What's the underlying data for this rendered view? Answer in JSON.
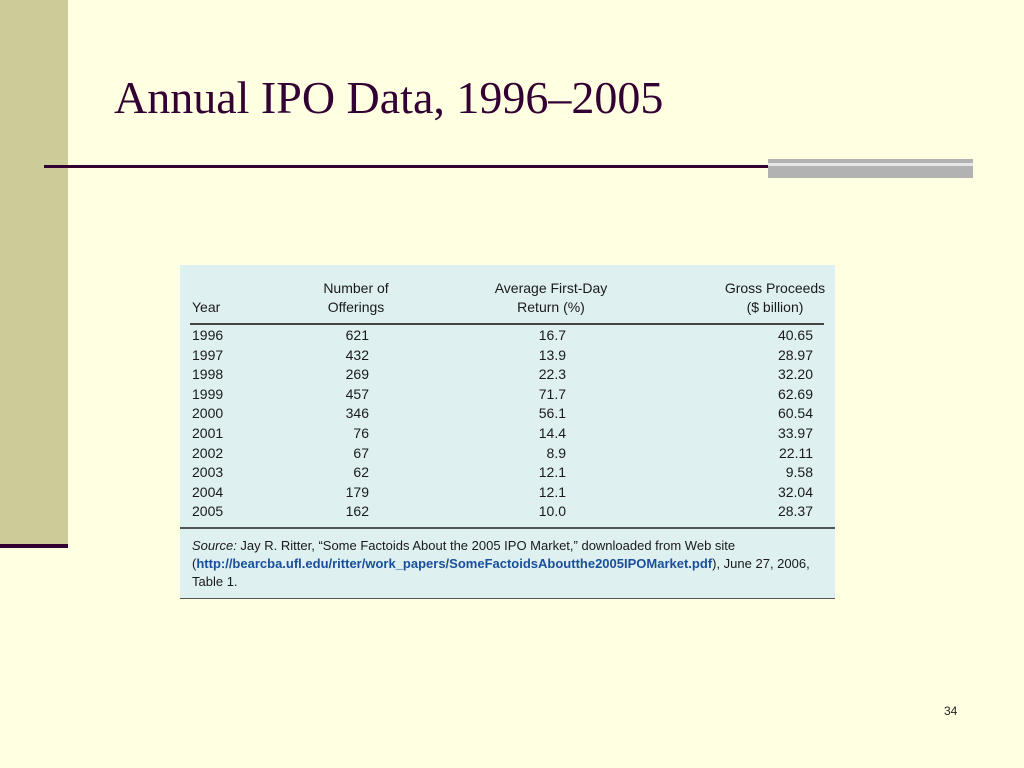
{
  "slide": {
    "title": "Annual IPO Data, 1996–2005",
    "number": "34"
  },
  "table": {
    "headers": {
      "year": "Year",
      "offerings_line1": "Number of",
      "offerings_line2": "Offerings",
      "return_line1": "Average First-Day",
      "return_line2": "Return (%)",
      "proceeds_line1": "Gross Proceeds",
      "proceeds_line2": "($ billion)"
    },
    "rows": [
      {
        "year": "1996",
        "offerings": "621",
        "return": "16.7",
        "proceeds": "40.65"
      },
      {
        "year": "1997",
        "offerings": "432",
        "return": "13.9",
        "proceeds": "28.97"
      },
      {
        "year": "1998",
        "offerings": "269",
        "return": "22.3",
        "proceeds": "32.20"
      },
      {
        "year": "1999",
        "offerings": "457",
        "return": "71.7",
        "proceeds": "62.69"
      },
      {
        "year": "2000",
        "offerings": "346",
        "return": "56.1",
        "proceeds": "60.54"
      },
      {
        "year": "2001",
        "offerings": "76",
        "return": "14.4",
        "proceeds": "33.97"
      },
      {
        "year": "2002",
        "offerings": "67",
        "return": "8.9",
        "proceeds": "22.11"
      },
      {
        "year": "2003",
        "offerings": "62",
        "return": "12.1",
        "proceeds": "9.58"
      },
      {
        "year": "2004",
        "offerings": "179",
        "return": "12.1",
        "proceeds": "32.04"
      },
      {
        "year": "2005",
        "offerings": "162",
        "return": "10.0",
        "proceeds": "28.37"
      }
    ],
    "source": {
      "label": "Source:",
      "text1": " Jay R. Ritter, “Some Factoids About the 2005 IPO Market,” downloaded from Web site (",
      "url": "http://bearcba.ufl.edu/ritter/work_papers/SomeFactoidsAboutthe2005IPOMarket.pdf",
      "text2": "), June 27, 2006, Table 1."
    }
  },
  "colors": {
    "background": "#ffffe1",
    "accent_band": "#cccc99",
    "title_text": "#330033",
    "table_background": "#dff0f0",
    "link": "#1a4f9c"
  }
}
